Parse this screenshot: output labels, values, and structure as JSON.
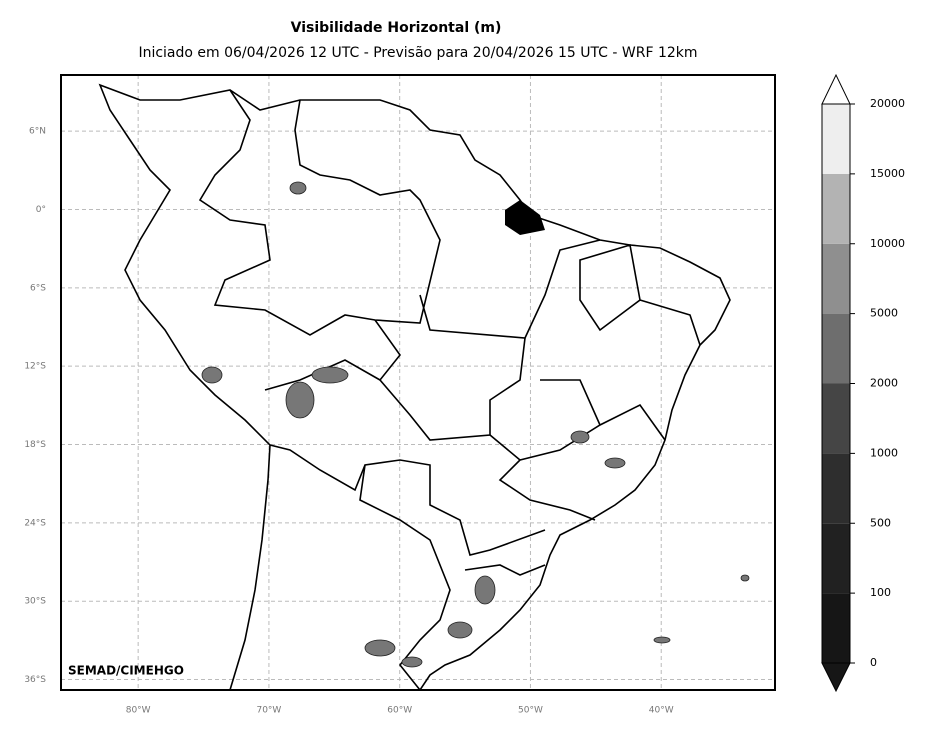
{
  "title": "Visibilidade Horizontal (m)",
  "subtitle": "Iniciado em 06/04/2026 12 UTC - Previsão para 20/04/2026 15 UTC - WRF 12km",
  "credit": "SEMAD/CIMEHGO",
  "map": {
    "lonlim": [
      -85.9,
      -31.3
    ],
    "latlim": [
      10.3,
      -36.8
    ],
    "lonticks": [
      {
        "value": -80,
        "label": "80°W"
      },
      {
        "value": -70,
        "label": "70°W"
      },
      {
        "value": -60,
        "label": "60°W"
      },
      {
        "value": -50,
        "label": "50°W"
      },
      {
        "value": -40,
        "label": "40°W"
      }
    ],
    "latticks": [
      {
        "value": 6,
        "label": "6°N"
      },
      {
        "value": 0,
        "label": "0°"
      },
      {
        "value": -6,
        "label": "6°S"
      },
      {
        "value": -12,
        "label": "12°S"
      },
      {
        "value": -18,
        "label": "18°S"
      },
      {
        "value": -24,
        "label": "24°S"
      },
      {
        "value": -30,
        "label": "30°S"
      },
      {
        "value": -36,
        "label": "36°S"
      }
    ],
    "grid": true
  },
  "colorbar": {
    "levels": [
      0,
      100,
      500,
      1000,
      2000,
      5000,
      10000,
      15000,
      20000
    ],
    "colors": [
      "#161616",
      "#212121",
      "#2e2e2e",
      "#454545",
      "#6e6e6e",
      "#8f8f8f",
      "#b3b3b3",
      "#eeeeee"
    ],
    "extend_low": "#161616",
    "extend_high": "#ffffff"
  }
}
